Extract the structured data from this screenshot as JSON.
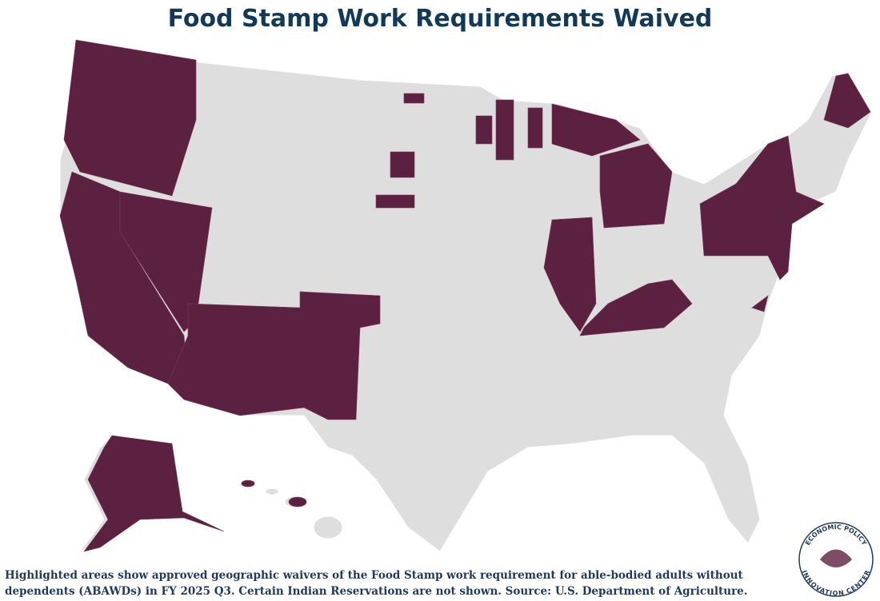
{
  "header": {
    "title": "Food Stamp Work Requirements Waived"
  },
  "caption": {
    "lines": [
      "Highlighted areas show approved geographic waivers of the Food Stamp work requirement for able-bodied adults without",
      "dependents (ABAWDs) in FY 2025 Q3. Certain Indian Reservations are not shown. Source: U.S. Department of Agriculture."
    ]
  },
  "logo": {
    "top": "ECONOMIC POLICY",
    "bottom": "INNOVATION CENTER"
  }
}
